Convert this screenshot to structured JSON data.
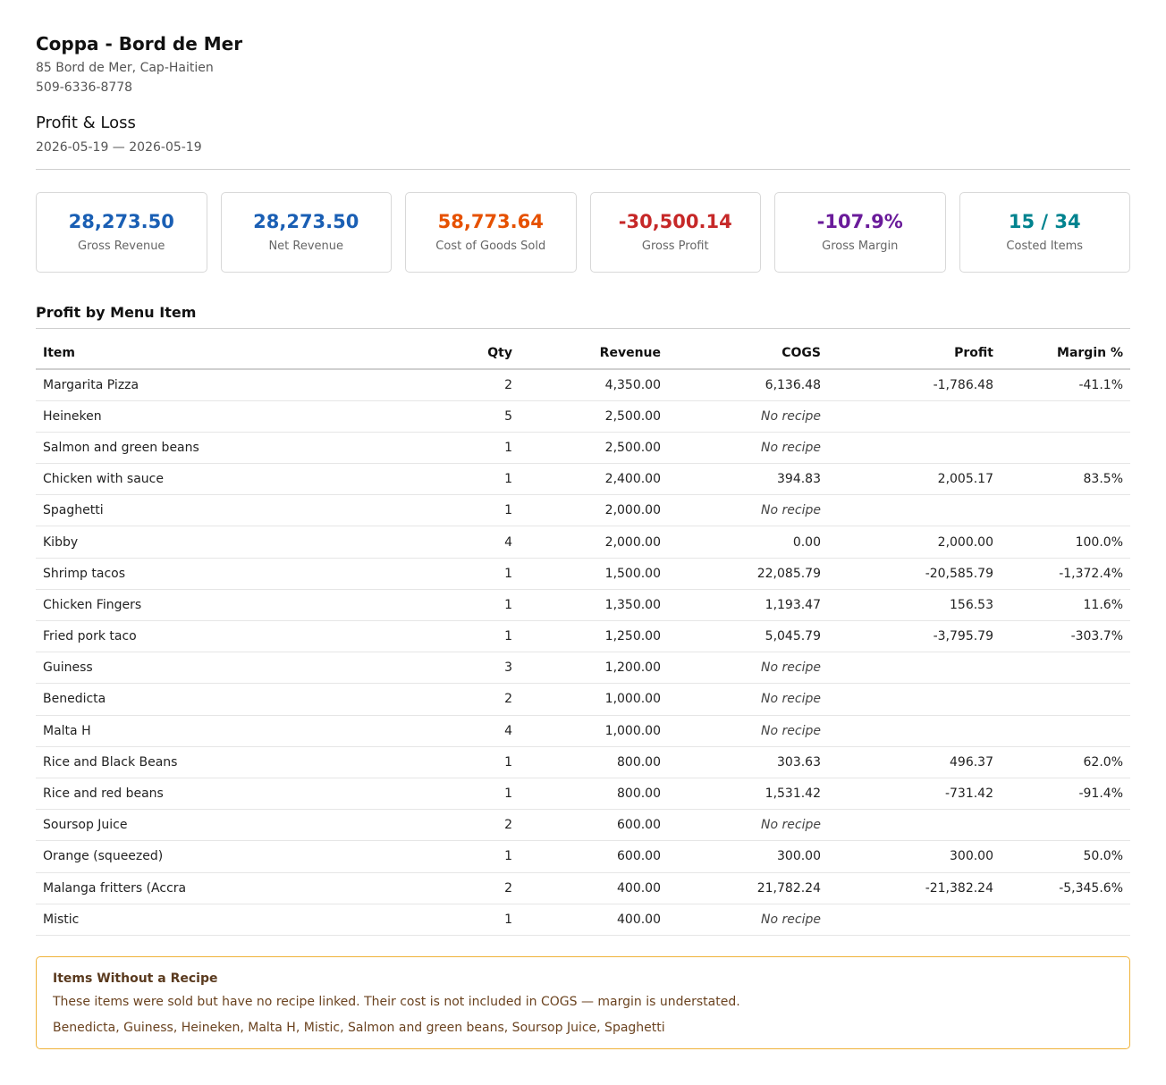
{
  "business": {
    "name": "Coppa - Bord de Mer",
    "address": "85 Bord de Mer, Cap-Haitien",
    "phone": "509-6336-8778"
  },
  "report": {
    "title": "Profit & Loss",
    "date_range": "2026-05-19 — 2026-05-19"
  },
  "kpis": [
    {
      "value": "28,273.50",
      "label": "Gross Revenue",
      "color": "#1a5fb4"
    },
    {
      "value": "28,273.50",
      "label": "Net Revenue",
      "color": "#1a5fb4"
    },
    {
      "value": "58,773.64",
      "label": "Cost of Goods Sold",
      "color": "#e65100"
    },
    {
      "value": "-30,500.14",
      "label": "Gross Profit",
      "color": "#c62828"
    },
    {
      "value": "-107.9%",
      "label": "Gross Margin",
      "color": "#6a1b9a"
    },
    {
      "value": "15 / 34",
      "label": "Costed Items",
      "color": "#00838f"
    }
  ],
  "table": {
    "title": "Profit by Menu Item",
    "headers": {
      "item": "Item",
      "qty": "Qty",
      "revenue": "Revenue",
      "cogs": "COGS",
      "profit": "Profit",
      "margin": "Margin %"
    },
    "rows": [
      {
        "item": "Margarita Pizza",
        "qty": "2",
        "revenue": "4,350.00",
        "cogs": "6,136.48",
        "profit": "-1,786.48",
        "margin": "-41.1%"
      },
      {
        "item": "Heineken",
        "qty": "5",
        "revenue": "2,500.00",
        "cogs": "No recipe",
        "profit": "",
        "margin": ""
      },
      {
        "item": "Salmon and green beans",
        "qty": "1",
        "revenue": "2,500.00",
        "cogs": "No recipe",
        "profit": "",
        "margin": ""
      },
      {
        "item": "Chicken with sauce",
        "qty": "1",
        "revenue": "2,400.00",
        "cogs": "394.83",
        "profit": "2,005.17",
        "margin": "83.5%"
      },
      {
        "item": "Spaghetti",
        "qty": "1",
        "revenue": "2,000.00",
        "cogs": "No recipe",
        "profit": "",
        "margin": ""
      },
      {
        "item": "Kibby",
        "qty": "4",
        "revenue": "2,000.00",
        "cogs": "0.00",
        "profit": "2,000.00",
        "margin": "100.0%"
      },
      {
        "item": "Shrimp tacos",
        "qty": "1",
        "revenue": "1,500.00",
        "cogs": "22,085.79",
        "profit": "-20,585.79",
        "margin": "-1,372.4%"
      },
      {
        "item": "Chicken Fingers",
        "qty": "1",
        "revenue": "1,350.00",
        "cogs": "1,193.47",
        "profit": "156.53",
        "margin": "11.6%"
      },
      {
        "item": "Fried pork taco",
        "qty": "1",
        "revenue": "1,250.00",
        "cogs": "5,045.79",
        "profit": "-3,795.79",
        "margin": "-303.7%"
      },
      {
        "item": "Guiness",
        "qty": "3",
        "revenue": "1,200.00",
        "cogs": "No recipe",
        "profit": "",
        "margin": ""
      },
      {
        "item": "Benedicta",
        "qty": "2",
        "revenue": "1,000.00",
        "cogs": "No recipe",
        "profit": "",
        "margin": ""
      },
      {
        "item": "Malta H",
        "qty": "4",
        "revenue": "1,000.00",
        "cogs": "No recipe",
        "profit": "",
        "margin": ""
      },
      {
        "item": "Rice and Black Beans",
        "qty": "1",
        "revenue": "800.00",
        "cogs": "303.63",
        "profit": "496.37",
        "margin": "62.0%"
      },
      {
        "item": "Rice and red beans",
        "qty": "1",
        "revenue": "800.00",
        "cogs": "1,531.42",
        "profit": "-731.42",
        "margin": "-91.4%"
      },
      {
        "item": "Soursop Juice",
        "qty": "2",
        "revenue": "600.00",
        "cogs": "No recipe",
        "profit": "",
        "margin": ""
      },
      {
        "item": "Orange (squeezed)",
        "qty": "1",
        "revenue": "600.00",
        "cogs": "300.00",
        "profit": "300.00",
        "margin": "50.0%"
      },
      {
        "item": "Malanga fritters (Accra",
        "qty": "2",
        "revenue": "400.00",
        "cogs": "21,782.24",
        "profit": "-21,382.24",
        "margin": "-5,345.6%"
      },
      {
        "item": "Mistic",
        "qty": "1",
        "revenue": "400.00",
        "cogs": "No recipe",
        "profit": "",
        "margin": ""
      }
    ]
  },
  "notice": {
    "title": "Items Without a Recipe",
    "text": "These items were sold but have no recipe linked. Their cost is not included in COGS — margin is understated.",
    "items": "Benedicta, Guiness, Heineken, Malta H, Mistic, Salmon and green beans, Soursop Juice, Spaghetti"
  }
}
